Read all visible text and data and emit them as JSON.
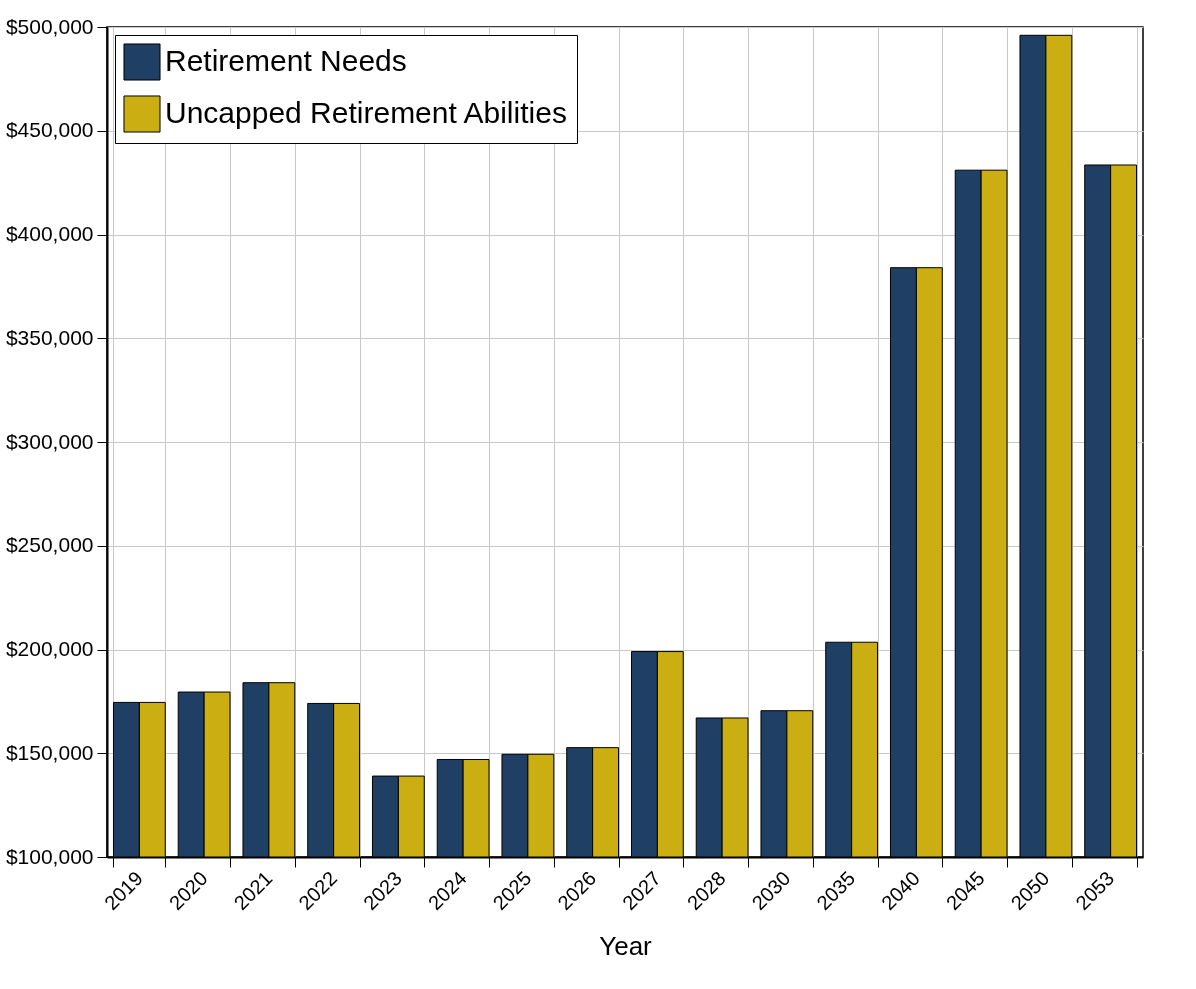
{
  "chart_data": {
    "type": "bar",
    "xlabel": "Year",
    "categories": [
      "2019",
      "2020",
      "2021",
      "2022",
      "2023",
      "2024",
      "2025",
      "2026",
      "2027",
      "2028",
      "2030",
      "2035",
      "2040",
      "2045",
      "2050",
      "2053"
    ],
    "series": [
      {
        "name": "Retirement Needs",
        "color": "#1f3f64",
        "values": [
          174500,
          179500,
          184000,
          174000,
          139000,
          147000,
          149500,
          152700,
          199000,
          167000,
          170500,
          203500,
          384000,
          431000,
          496000,
          433500
        ]
      },
      {
        "name": "Uncapped Retirement Abilities",
        "color": "#cbae11",
        "values": [
          174500,
          179500,
          184000,
          174000,
          139000,
          147000,
          149500,
          152700,
          199000,
          167000,
          170500,
          203500,
          384000,
          431000,
          496000,
          433500
        ]
      }
    ],
    "ylim": [
      100000,
      500000
    ],
    "yticks": [
      {
        "value": 100000,
        "label": "$100,000"
      },
      {
        "value": 150000,
        "label": "$150,000"
      },
      {
        "value": 200000,
        "label": "$200,000"
      },
      {
        "value": 250000,
        "label": "$250,000"
      },
      {
        "value": 300000,
        "label": "$300,000"
      },
      {
        "value": 350000,
        "label": "$350,000"
      },
      {
        "value": 400000,
        "label": "$400,000"
      },
      {
        "value": 450000,
        "label": "$450,000"
      },
      {
        "value": 500000,
        "label": "$500,000"
      }
    ],
    "grid": true,
    "legend": "top left"
  }
}
